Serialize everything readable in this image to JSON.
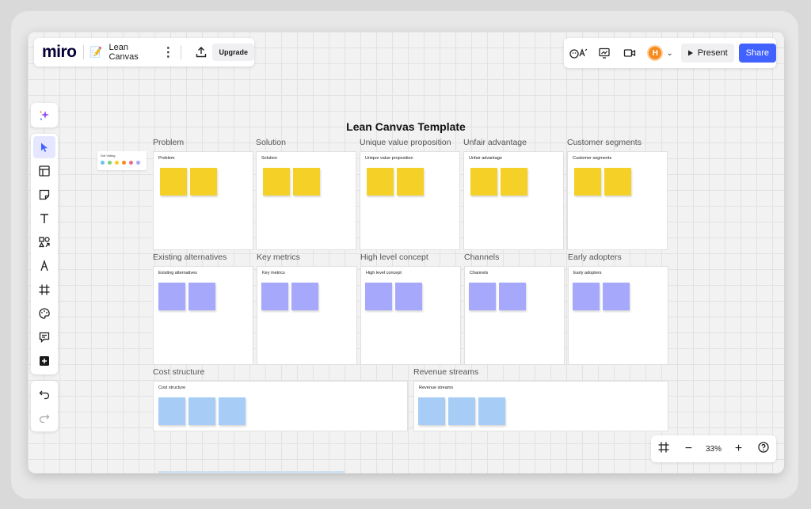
{
  "app": {
    "logo": "miro",
    "board_emoji": "📝",
    "board_name": "Lean Canvas",
    "more": "⋮",
    "upgrade": "Upgrade"
  },
  "header_right": {
    "present": "Present",
    "share": "Share",
    "avatar_initial": "H"
  },
  "board": {
    "title": "Lean Canvas Template"
  },
  "sections": {
    "problem": "Problem",
    "solution": "Solution",
    "uvp": "Unique value proposition",
    "unfair": "Unfair advantage",
    "customer": "Customer segments",
    "existing": "Existing alternatives",
    "metrics": "Key metrics",
    "concept": "High level concept",
    "channels": "Channels",
    "adopters": "Early adopters",
    "cost": "Cost structure",
    "revenue": "Revenue streams"
  },
  "mini_widget": {
    "title": "Dot Voting"
  },
  "zoom": {
    "level": "33%"
  },
  "colors": {
    "accent": "#4262ff",
    "sticky_yellow": "#f5d128",
    "sticky_purple": "#a6a8fb",
    "sticky_blue": "#a7cdf7",
    "avatar": "#f58a1f"
  }
}
